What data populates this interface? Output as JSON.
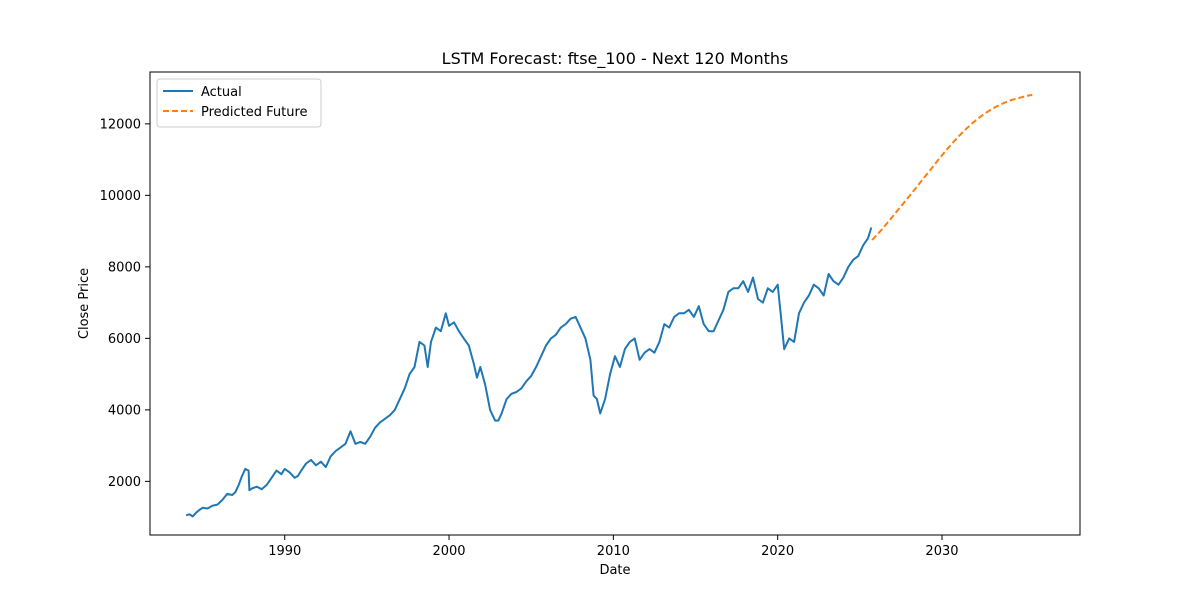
{
  "chart_data": {
    "type": "line",
    "title": "LSTM Forecast: ftse_100 - Next 120 Months",
    "xlabel": "Date",
    "ylabel": "Close Price",
    "xlim": [
      1981.8,
      2038.4
    ],
    "ylim": [
      500,
      13450
    ],
    "x_ticks": [
      1990,
      2000,
      2010,
      2020,
      2030
    ],
    "y_ticks": [
      2000,
      4000,
      6000,
      8000,
      10000,
      12000
    ],
    "grid": false,
    "legend_position": "top-left",
    "series": [
      {
        "name": "Actual",
        "color": "#1f77b4",
        "style": "solid",
        "x": [
          1984.0,
          1984.2,
          1984.4,
          1984.6,
          1984.8,
          1985.0,
          1985.3,
          1985.6,
          1985.9,
          1986.2,
          1986.5,
          1986.8,
          1987.0,
          1987.2,
          1987.4,
          1987.6,
          1987.8,
          1987.85,
          1988.0,
          1988.3,
          1988.6,
          1988.9,
          1989.2,
          1989.5,
          1989.8,
          1990.0,
          1990.3,
          1990.6,
          1990.8,
          1991.0,
          1991.3,
          1991.6,
          1991.9,
          1992.2,
          1992.5,
          1992.8,
          1993.1,
          1993.4,
          1993.7,
          1994.0,
          1994.3,
          1994.6,
          1994.9,
          1995.2,
          1995.5,
          1995.8,
          1996.1,
          1996.4,
          1996.7,
          1997.0,
          1997.3,
          1997.6,
          1997.9,
          1998.2,
          1998.5,
          1998.7,
          1998.9,
          1999.2,
          1999.5,
          1999.8,
          2000.0,
          2000.3,
          2000.6,
          2000.9,
          2001.2,
          2001.5,
          2001.7,
          2001.9,
          2002.2,
          2002.5,
          2002.8,
          2003.0,
          2003.2,
          2003.5,
          2003.8,
          2004.1,
          2004.4,
          2004.7,
          2005.0,
          2005.3,
          2005.6,
          2005.9,
          2006.2,
          2006.5,
          2006.8,
          2007.1,
          2007.4,
          2007.7,
          2008.0,
          2008.3,
          2008.6,
          2008.8,
          2009.0,
          2009.2,
          2009.5,
          2009.8,
          2010.1,
          2010.4,
          2010.7,
          2011.0,
          2011.3,
          2011.6,
          2011.9,
          2012.2,
          2012.5,
          2012.8,
          2013.1,
          2013.4,
          2013.7,
          2014.0,
          2014.3,
          2014.6,
          2014.9,
          2015.2,
          2015.5,
          2015.8,
          2016.1,
          2016.4,
          2016.7,
          2017.0,
          2017.3,
          2017.6,
          2017.9,
          2018.2,
          2018.5,
          2018.8,
          2019.1,
          2019.4,
          2019.7,
          2020.0,
          2020.2,
          2020.4,
          2020.7,
          2021.0,
          2021.3,
          2021.6,
          2021.9,
          2022.2,
          2022.5,
          2022.8,
          2023.1,
          2023.4,
          2023.7,
          2024.0,
          2024.3,
          2024.6,
          2024.9,
          2025.2,
          2025.5,
          2025.7
        ],
        "y": [
          1050,
          1080,
          1020,
          1120,
          1200,
          1260,
          1240,
          1320,
          1350,
          1480,
          1650,
          1620,
          1700,
          1900,
          2150,
          2350,
          2300,
          1750,
          1800,
          1850,
          1780,
          1900,
          2100,
          2300,
          2200,
          2350,
          2250,
          2100,
          2150,
          2300,
          2500,
          2600,
          2450,
          2550,
          2400,
          2700,
          2850,
          2950,
          3050,
          3400,
          3050,
          3100,
          3050,
          3250,
          3500,
          3650,
          3750,
          3850,
          4000,
          4300,
          4600,
          5000,
          5200,
          5900,
          5800,
          5200,
          5900,
          6300,
          6200,
          6700,
          6350,
          6450,
          6200,
          6000,
          5800,
          5300,
          4900,
          5200,
          4700,
          4000,
          3700,
          3700,
          3900,
          4300,
          4450,
          4500,
          4600,
          4800,
          4950,
          5200,
          5500,
          5800,
          6000,
          6100,
          6300,
          6400,
          6550,
          6600,
          6300,
          6000,
          5400,
          4400,
          4300,
          3900,
          4300,
          5000,
          5500,
          5200,
          5700,
          5900,
          6000,
          5400,
          5600,
          5700,
          5600,
          5900,
          6400,
          6300,
          6600,
          6700,
          6700,
          6800,
          6600,
          6900,
          6400,
          6200,
          6200,
          6500,
          6800,
          7300,
          7400,
          7400,
          7600,
          7300,
          7700,
          7100,
          7000,
          7400,
          7300,
          7500,
          6600,
          5700,
          6000,
          5900,
          6700,
          7000,
          7200,
          7500,
          7400,
          7200,
          7800,
          7600,
          7500,
          7700,
          8000,
          8200,
          8300,
          8600,
          8800,
          9100
        ]
      },
      {
        "name": "Predicted Future",
        "color": "#ff7f0e",
        "style": "dashed",
        "x": [
          2025.75,
          2026.25,
          2026.75,
          2027.25,
          2027.75,
          2028.25,
          2028.75,
          2029.25,
          2029.75,
          2030.25,
          2030.75,
          2031.25,
          2031.75,
          2032.25,
          2032.75,
          2033.25,
          2033.75,
          2034.25,
          2034.75,
          2035.25,
          2035.5
        ],
        "y": [
          8750,
          9000,
          9270,
          9550,
          9830,
          10110,
          10400,
          10690,
          10980,
          11260,
          11520,
          11760,
          11980,
          12170,
          12330,
          12470,
          12580,
          12670,
          12730,
          12790,
          12810
        ]
      }
    ]
  }
}
